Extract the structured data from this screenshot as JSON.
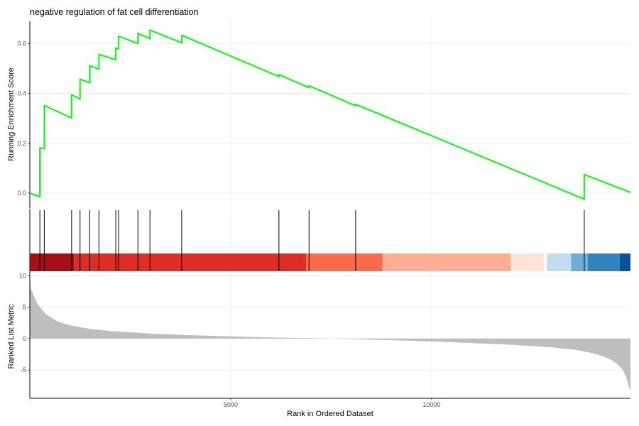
{
  "chart_data": {
    "type": "line",
    "title": "negative regulation of fat cell differentiation",
    "xlabel": "Rank in Ordered Dataset",
    "x_ticks": [
      5000,
      10000
    ],
    "xlim": [
      0,
      14950
    ],
    "grid": true,
    "panels": [
      {
        "name": "running-enrichment",
        "ylabel": "Running Enrichment Score",
        "ylim": [
          -0.06,
          0.69
        ],
        "y_ticks": [
          0.0,
          0.2,
          0.4,
          0.6
        ],
        "y_tick_labels": [
          "0.0",
          "0.2",
          "0.4",
          "0.6"
        ],
        "line_color": "#00ff00",
        "series": {
          "x": [
            0,
            250,
            250,
            360,
            360,
            1040,
            1040,
            1250,
            1250,
            1490,
            1490,
            1720,
            1720,
            2140,
            2140,
            2210,
            2210,
            2690,
            2690,
            2990,
            2990,
            3780,
            3780,
            6200,
            6200,
            6950,
            6950,
            8110,
            8110,
            13800,
            13800,
            14950
          ],
          "y": [
            0.0,
            -0.014,
            0.182,
            0.178,
            0.352,
            0.302,
            0.395,
            0.378,
            0.458,
            0.444,
            0.512,
            0.498,
            0.557,
            0.536,
            0.583,
            0.58,
            0.63,
            0.601,
            0.642,
            0.62,
            0.655,
            0.604,
            0.634,
            0.468,
            0.476,
            0.424,
            0.431,
            0.351,
            0.357,
            -0.024,
            0.075,
            0.003
          ]
        }
      },
      {
        "name": "gene-hits",
        "hits": [
          250,
          360,
          1040,
          1250,
          1490,
          1720,
          2140,
          2210,
          2690,
          2990,
          3780,
          6200,
          6950,
          8110,
          13800
        ],
        "color_bands": [
          {
            "from": 0,
            "to": 1100,
            "color": "#a50f15"
          },
          {
            "from": 1100,
            "to": 6880,
            "color": "#de2d26"
          },
          {
            "from": 6880,
            "to": 8780,
            "color": "#fb6a4a"
          },
          {
            "from": 8780,
            "to": 11970,
            "color": "#fcae91"
          },
          {
            "from": 11970,
            "to": 12800,
            "color": "#fee5d9"
          },
          {
            "from": 12800,
            "to": 12870,
            "color": "#ffffff"
          },
          {
            "from": 12870,
            "to": 13470,
            "color": "#c6dbef"
          },
          {
            "from": 13470,
            "to": 13890,
            "color": "#6baed6"
          },
          {
            "from": 13890,
            "to": 14680,
            "color": "#3182bd"
          },
          {
            "from": 14680,
            "to": 14950,
            "color": "#08519c"
          }
        ]
      },
      {
        "name": "ranked-list-metric",
        "ylabel": "Ranked List Metric",
        "ylim": [
          -9.5,
          10.5
        ],
        "y_ticks": [
          -5,
          0,
          5,
          10
        ],
        "y_tick_labels": [
          "-5",
          "0",
          "5",
          "10"
        ],
        "fill_color": "#bebebe",
        "series": {
          "x": [
            0,
            25,
            100,
            200,
            400,
            700,
            1000,
            1500,
            2000,
            3000,
            4000,
            5000,
            6000,
            7000,
            7500,
            8000,
            9000,
            10000,
            11000,
            12000,
            13000,
            13600,
            14000,
            14300,
            14500,
            14650,
            14760,
            14850,
            14910,
            14950
          ],
          "y": [
            10.0,
            8.0,
            6.8,
            5.4,
            3.9,
            2.7,
            2.1,
            1.55,
            1.2,
            0.8,
            0.55,
            0.35,
            0.2,
            0.07,
            0.0,
            -0.08,
            -0.25,
            -0.45,
            -0.7,
            -0.98,
            -1.4,
            -1.8,
            -2.3,
            -2.9,
            -3.5,
            -4.2,
            -5.0,
            -6.2,
            -7.6,
            -8.5
          ]
        }
      }
    ]
  }
}
